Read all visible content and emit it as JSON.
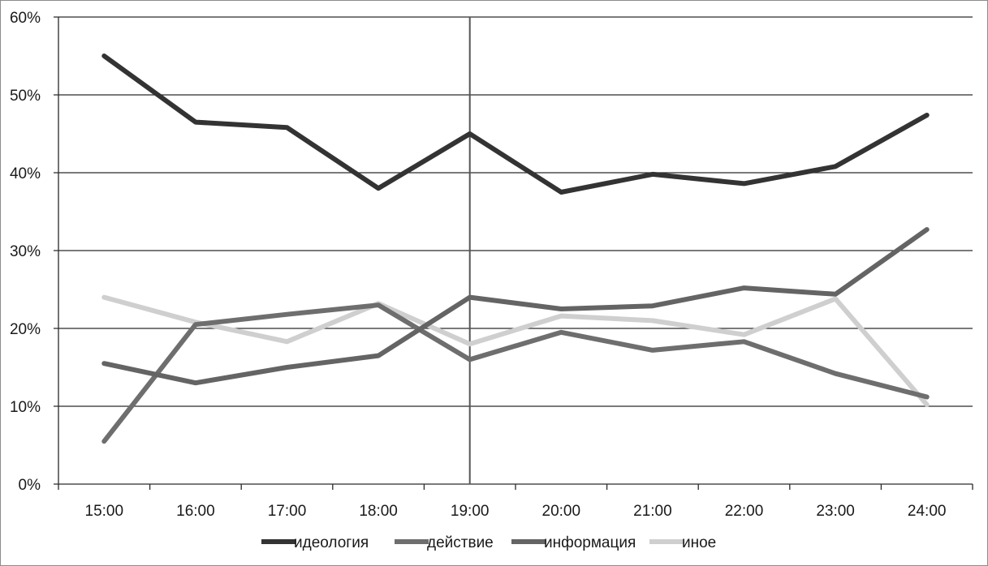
{
  "chart_data": {
    "type": "line",
    "title": "",
    "xlabel": "",
    "ylabel": "",
    "categories": [
      "15:00",
      "16:00",
      "17:00",
      "18:00",
      "19:00",
      "20:00",
      "21:00",
      "22:00",
      "23:00",
      "24:00"
    ],
    "y_ticks": [
      "0%",
      "10%",
      "20%",
      "30%",
      "40%",
      "50%",
      "60%"
    ],
    "ylim": [
      0,
      60
    ],
    "grid": "horizontal",
    "legend_position": "bottom",
    "marker_line_at": "19:00",
    "series": [
      {
        "name": "идеология",
        "color": "#333333",
        "values": [
          55.0,
          46.5,
          45.8,
          38.0,
          45.0,
          37.5,
          39.8,
          38.6,
          40.8,
          47.4
        ]
      },
      {
        "name": "действие",
        "color": "#6e6e6e",
        "values": [
          5.5,
          20.5,
          21.8,
          23.0,
          16.0,
          19.5,
          17.2,
          18.3,
          14.2,
          11.2
        ]
      },
      {
        "name": "информация",
        "color": "#646464",
        "values": [
          15.5,
          13.0,
          15.0,
          16.5,
          24.0,
          22.5,
          22.9,
          25.2,
          24.4,
          32.7
        ]
      },
      {
        "name": "иное",
        "color": "#cfcfcf",
        "values": [
          24.0,
          20.8,
          18.3,
          23.2,
          18.0,
          21.6,
          21.0,
          19.2,
          23.8,
          10.2
        ]
      }
    ]
  }
}
